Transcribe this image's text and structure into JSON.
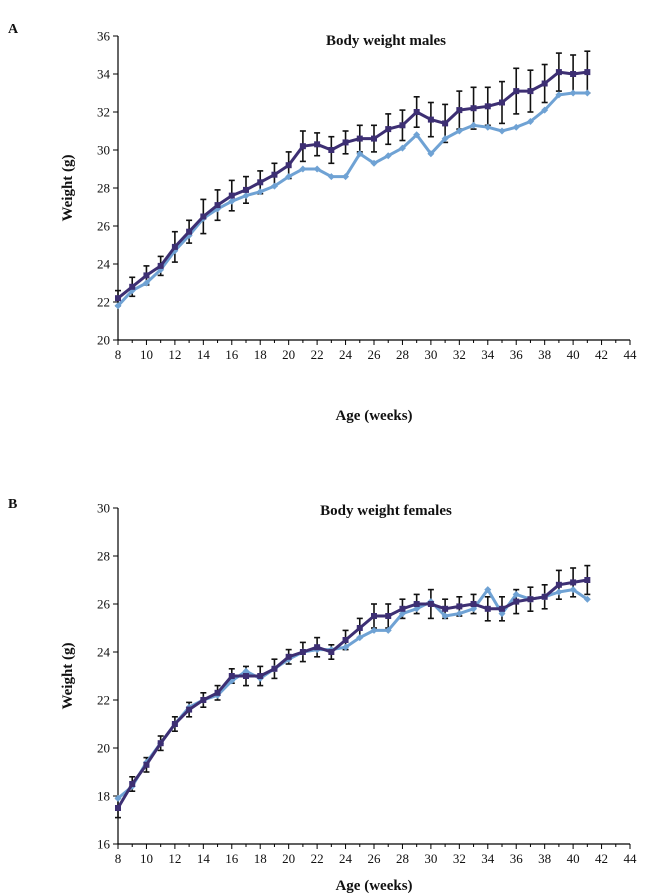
{
  "chart_data": [
    {
      "panel_label": "A",
      "type": "line",
      "title": "Body weight males",
      "xlabel": "Age (weeks)",
      "ylabel": "Weight (g)",
      "xlim": [
        8,
        44
      ],
      "ylim": [
        20,
        36
      ],
      "xticks": [
        8,
        10,
        12,
        14,
        16,
        18,
        20,
        22,
        24,
        26,
        28,
        30,
        32,
        34,
        36,
        38,
        40,
        42,
        44
      ],
      "yticks": [
        20,
        22,
        24,
        26,
        28,
        30,
        32,
        34,
        36
      ],
      "x": [
        8,
        9,
        10,
        11,
        12,
        13,
        14,
        15,
        16,
        17,
        18,
        19,
        20,
        21,
        22,
        23,
        24,
        25,
        26,
        27,
        28,
        29,
        30,
        31,
        32,
        33,
        34,
        35,
        36,
        37,
        38,
        39,
        40,
        41
      ],
      "series": [
        {
          "color": "#3d2f73",
          "marker": "square",
          "values": [
            22.2,
            22.8,
            23.4,
            23.9,
            24.9,
            25.7,
            26.5,
            27.1,
            27.6,
            27.9,
            28.3,
            28.7,
            29.2,
            30.2,
            30.3,
            30.0,
            30.4,
            30.6,
            30.6,
            31.1,
            31.3,
            32.0,
            31.6,
            31.4,
            32.1,
            32.2,
            32.3,
            32.5,
            33.1,
            33.1,
            33.5,
            34.1,
            34.0,
            34.1
          ],
          "errors": [
            0.4,
            0.5,
            0.5,
            0.5,
            0.8,
            0.6,
            0.9,
            0.8,
            0.8,
            0.7,
            0.6,
            0.6,
            0.7,
            0.8,
            0.6,
            0.7,
            0.6,
            0.7,
            0.7,
            0.8,
            0.8,
            0.8,
            0.9,
            1.0,
            1.0,
            1.1,
            1.0,
            1.1,
            1.2,
            1.1,
            1.0,
            1.0,
            1.0,
            1.1
          ]
        },
        {
          "color": "#6fa2d4",
          "marker": "diamond",
          "values": [
            21.8,
            22.6,
            23.0,
            23.7,
            24.7,
            25.5,
            26.4,
            26.9,
            27.3,
            27.6,
            27.8,
            28.1,
            28.6,
            29.0,
            29.0,
            28.6,
            28.6,
            29.8,
            29.3,
            29.7,
            30.1,
            30.8,
            29.8,
            30.6,
            31.0,
            31.3,
            31.2,
            31.0,
            31.2,
            31.5,
            32.1,
            32.9,
            33.0,
            33.0
          ]
        }
      ]
    },
    {
      "panel_label": "B",
      "type": "line",
      "title": "Body weight females",
      "xlabel": "Age (weeks)",
      "ylabel": "Weight (g)",
      "xlim": [
        8,
        44
      ],
      "ylim": [
        16,
        30
      ],
      "xticks": [
        8,
        10,
        12,
        14,
        16,
        18,
        20,
        22,
        24,
        26,
        28,
        30,
        32,
        34,
        36,
        38,
        40,
        42,
        44
      ],
      "yticks": [
        16,
        18,
        20,
        22,
        24,
        26,
        28,
        30
      ],
      "x": [
        8,
        9,
        10,
        11,
        12,
        13,
        14,
        15,
        16,
        17,
        18,
        19,
        20,
        21,
        22,
        23,
        24,
        25,
        26,
        27,
        28,
        29,
        30,
        31,
        32,
        33,
        34,
        35,
        36,
        37,
        38,
        39,
        40,
        41
      ],
      "series": [
        {
          "color": "#3d2f73",
          "marker": "square",
          "values": [
            17.5,
            18.5,
            19.3,
            20.2,
            21.0,
            21.6,
            22.0,
            22.3,
            23.0,
            23.0,
            23.0,
            23.3,
            23.8,
            24.0,
            24.2,
            24.0,
            24.5,
            25.0,
            25.5,
            25.5,
            25.8,
            26.0,
            26.0,
            25.8,
            25.9,
            26.0,
            25.8,
            25.8,
            26.1,
            26.2,
            26.3,
            26.8,
            26.9,
            27.0
          ],
          "errors": [
            0.4,
            0.3,
            0.3,
            0.3,
            0.3,
            0.3,
            0.3,
            0.3,
            0.3,
            0.4,
            0.4,
            0.4,
            0.3,
            0.4,
            0.4,
            0.3,
            0.4,
            0.4,
            0.5,
            0.5,
            0.4,
            0.4,
            0.6,
            0.4,
            0.4,
            0.4,
            0.5,
            0.5,
            0.5,
            0.5,
            0.5,
            0.6,
            0.6,
            0.6
          ]
        },
        {
          "color": "#6fa2d4",
          "marker": "diamond",
          "values": [
            17.9,
            18.4,
            19.4,
            20.2,
            21.0,
            21.7,
            22.0,
            22.2,
            22.8,
            23.2,
            22.9,
            23.3,
            23.7,
            24.0,
            24.1,
            24.1,
            24.2,
            24.6,
            24.9,
            24.9,
            25.6,
            25.8,
            26.1,
            25.5,
            25.6,
            25.8,
            26.6,
            25.6,
            26.4,
            26.2,
            26.3,
            26.5,
            26.6,
            26.2
          ]
        }
      ]
    }
  ]
}
